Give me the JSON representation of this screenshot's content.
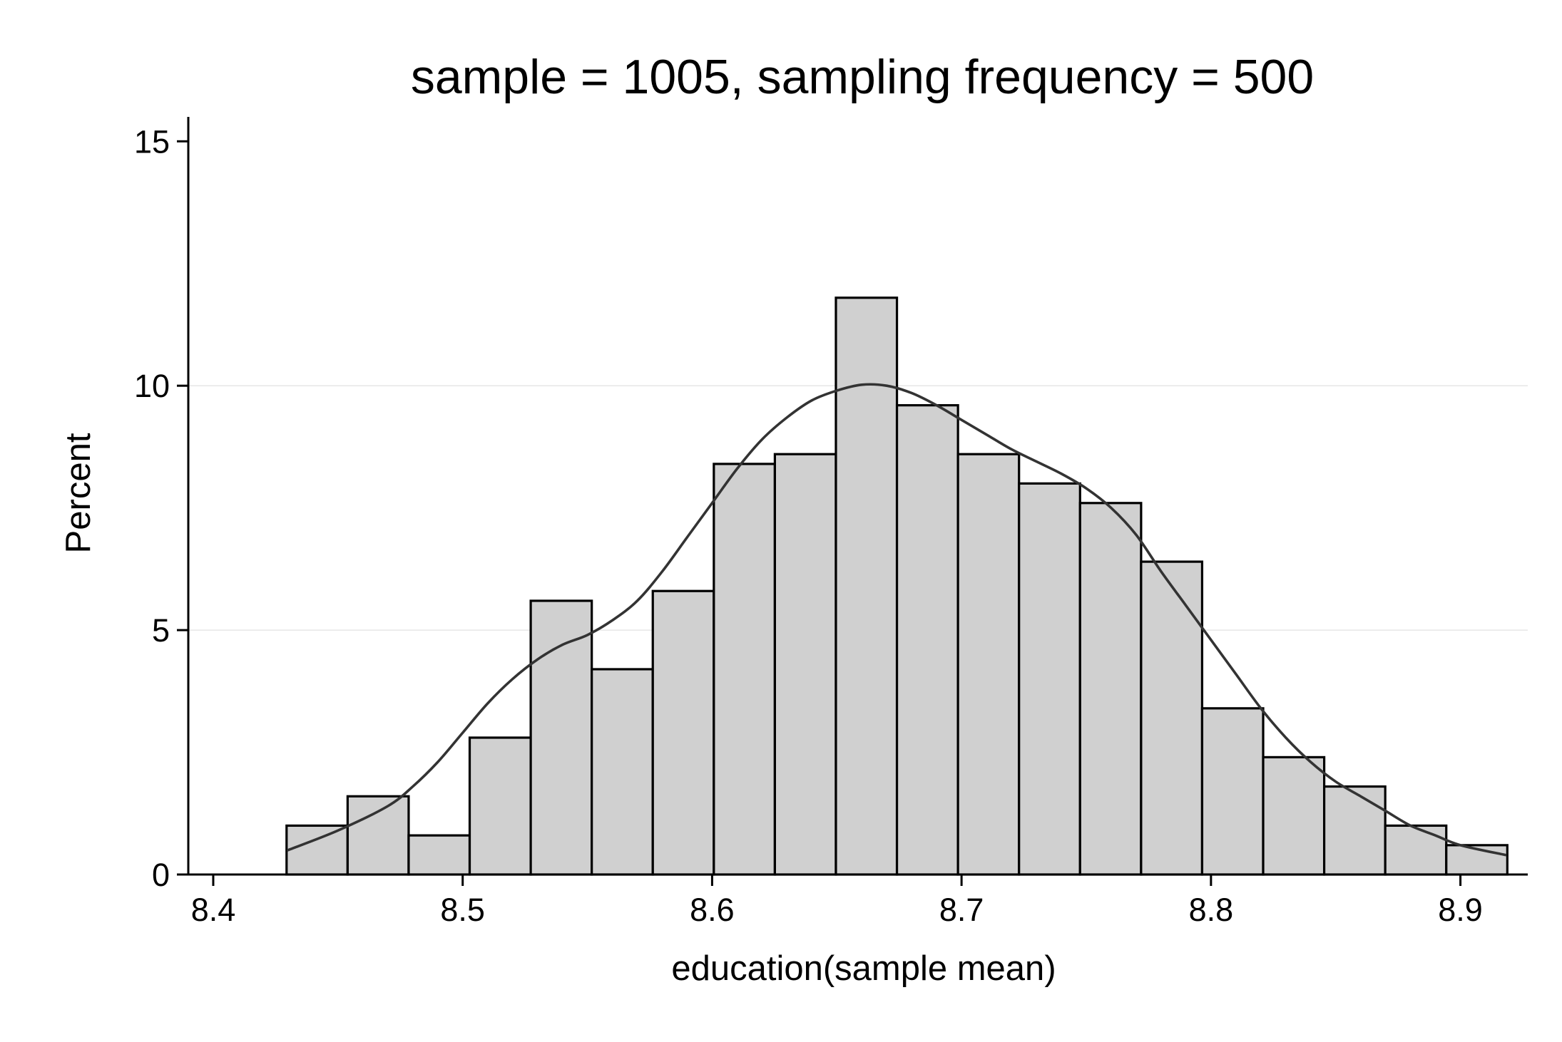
{
  "chart_data": {
    "type": "bar",
    "title": "sample = 1005, sampling frequency = 500",
    "xlabel": "education(sample mean)",
    "ylabel": "Percent",
    "xlim": [
      8.39,
      8.927
    ],
    "ylim": [
      0,
      15.5
    ],
    "xticks": [
      8.4,
      8.5,
      8.6,
      8.7,
      8.8,
      8.9
    ],
    "xtick_labels": [
      "8.4",
      "8.5",
      "8.6",
      "8.7",
      "8.8",
      "8.9"
    ],
    "yticks": [
      0,
      5,
      10,
      15
    ],
    "ytick_labels": [
      "0",
      "5",
      "10",
      "15"
    ],
    "grid": "horizontal at y = 5 and 10",
    "legend": "none",
    "bin_start": 8.4294,
    "bin_width": 0.02447,
    "values": [
      1.0,
      1.6,
      0.8,
      2.8,
      5.6,
      4.2,
      5.8,
      8.4,
      8.6,
      11.8,
      9.6,
      8.6,
      8.0,
      7.6,
      6.4,
      3.4,
      2.4,
      1.8,
      1.0,
      0.6
    ],
    "density_curve": {
      "x": [
        8.43,
        8.45,
        8.47,
        8.48,
        8.49,
        8.5,
        8.51,
        8.52,
        8.53,
        8.54,
        8.55,
        8.56,
        8.57,
        8.58,
        8.59,
        8.6,
        8.61,
        8.62,
        8.63,
        8.64,
        8.65,
        8.66,
        8.67,
        8.68,
        8.69,
        8.7,
        8.71,
        8.72,
        8.73,
        8.74,
        8.75,
        8.76,
        8.77,
        8.78,
        8.79,
        8.8,
        8.81,
        8.82,
        8.83,
        8.84,
        8.85,
        8.86,
        8.87,
        8.88,
        8.89,
        8.9,
        8.918
      ],
      "y": [
        0.5,
        0.9,
        1.4,
        1.8,
        2.3,
        2.9,
        3.5,
        4.0,
        4.4,
        4.7,
        4.9,
        5.2,
        5.6,
        6.2,
        6.9,
        7.6,
        8.3,
        8.9,
        9.35,
        9.7,
        9.9,
        10.02,
        10.0,
        9.85,
        9.6,
        9.3,
        9.0,
        8.7,
        8.45,
        8.2,
        7.9,
        7.5,
        6.95,
        6.2,
        5.5,
        4.8,
        4.1,
        3.4,
        2.8,
        2.3,
        1.9,
        1.6,
        1.3,
        1.0,
        0.8,
        0.6,
        0.4
      ]
    },
    "colors": {
      "bar_fill": "#d0d0d0",
      "bar_edge": "#000000",
      "curve": "#333333",
      "grid": "#e6e6e6"
    }
  }
}
